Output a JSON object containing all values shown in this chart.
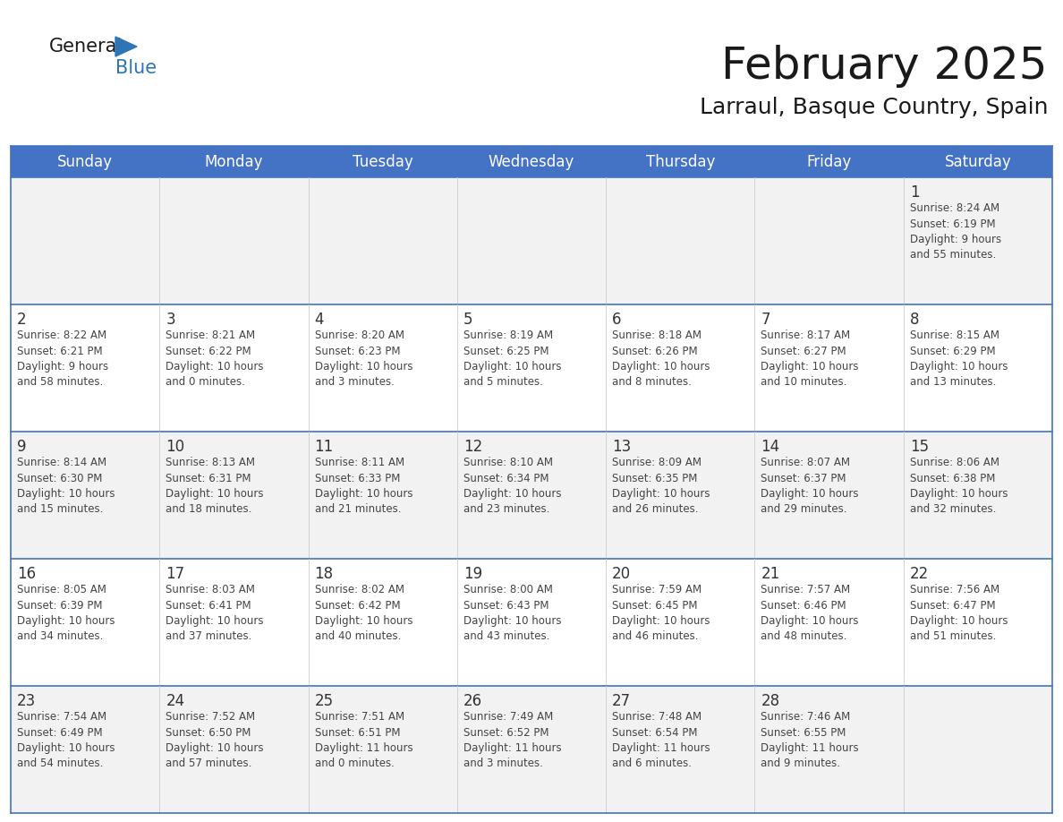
{
  "title": "February 2025",
  "subtitle": "Larraul, Basque Country, Spain",
  "days_of_week": [
    "Sunday",
    "Monday",
    "Tuesday",
    "Wednesday",
    "Thursday",
    "Friday",
    "Saturday"
  ],
  "header_bg": "#4472C4",
  "header_text": "#FFFFFF",
  "cell_bg_odd": "#F2F2F2",
  "cell_bg_even": "#FFFFFF",
  "row_border_color": "#4472C4",
  "col_border_color": "#CCCCCC",
  "title_color": "#1a1a1a",
  "subtitle_color": "#1a1a1a",
  "day_number_color": "#333333",
  "info_color": "#444444",
  "logo_general_color": "#1a1a1a",
  "logo_blue_color": "#2E75B6",
  "logo_triangle_color": "#2E75B6",
  "calendar_data": [
    [
      {
        "day": null,
        "info": ""
      },
      {
        "day": null,
        "info": ""
      },
      {
        "day": null,
        "info": ""
      },
      {
        "day": null,
        "info": ""
      },
      {
        "day": null,
        "info": ""
      },
      {
        "day": null,
        "info": ""
      },
      {
        "day": 1,
        "info": "Sunrise: 8:24 AM\nSunset: 6:19 PM\nDaylight: 9 hours\nand 55 minutes."
      }
    ],
    [
      {
        "day": 2,
        "info": "Sunrise: 8:22 AM\nSunset: 6:21 PM\nDaylight: 9 hours\nand 58 minutes."
      },
      {
        "day": 3,
        "info": "Sunrise: 8:21 AM\nSunset: 6:22 PM\nDaylight: 10 hours\nand 0 minutes."
      },
      {
        "day": 4,
        "info": "Sunrise: 8:20 AM\nSunset: 6:23 PM\nDaylight: 10 hours\nand 3 minutes."
      },
      {
        "day": 5,
        "info": "Sunrise: 8:19 AM\nSunset: 6:25 PM\nDaylight: 10 hours\nand 5 minutes."
      },
      {
        "day": 6,
        "info": "Sunrise: 8:18 AM\nSunset: 6:26 PM\nDaylight: 10 hours\nand 8 minutes."
      },
      {
        "day": 7,
        "info": "Sunrise: 8:17 AM\nSunset: 6:27 PM\nDaylight: 10 hours\nand 10 minutes."
      },
      {
        "day": 8,
        "info": "Sunrise: 8:15 AM\nSunset: 6:29 PM\nDaylight: 10 hours\nand 13 minutes."
      }
    ],
    [
      {
        "day": 9,
        "info": "Sunrise: 8:14 AM\nSunset: 6:30 PM\nDaylight: 10 hours\nand 15 minutes."
      },
      {
        "day": 10,
        "info": "Sunrise: 8:13 AM\nSunset: 6:31 PM\nDaylight: 10 hours\nand 18 minutes."
      },
      {
        "day": 11,
        "info": "Sunrise: 8:11 AM\nSunset: 6:33 PM\nDaylight: 10 hours\nand 21 minutes."
      },
      {
        "day": 12,
        "info": "Sunrise: 8:10 AM\nSunset: 6:34 PM\nDaylight: 10 hours\nand 23 minutes."
      },
      {
        "day": 13,
        "info": "Sunrise: 8:09 AM\nSunset: 6:35 PM\nDaylight: 10 hours\nand 26 minutes."
      },
      {
        "day": 14,
        "info": "Sunrise: 8:07 AM\nSunset: 6:37 PM\nDaylight: 10 hours\nand 29 minutes."
      },
      {
        "day": 15,
        "info": "Sunrise: 8:06 AM\nSunset: 6:38 PM\nDaylight: 10 hours\nand 32 minutes."
      }
    ],
    [
      {
        "day": 16,
        "info": "Sunrise: 8:05 AM\nSunset: 6:39 PM\nDaylight: 10 hours\nand 34 minutes."
      },
      {
        "day": 17,
        "info": "Sunrise: 8:03 AM\nSunset: 6:41 PM\nDaylight: 10 hours\nand 37 minutes."
      },
      {
        "day": 18,
        "info": "Sunrise: 8:02 AM\nSunset: 6:42 PM\nDaylight: 10 hours\nand 40 minutes."
      },
      {
        "day": 19,
        "info": "Sunrise: 8:00 AM\nSunset: 6:43 PM\nDaylight: 10 hours\nand 43 minutes."
      },
      {
        "day": 20,
        "info": "Sunrise: 7:59 AM\nSunset: 6:45 PM\nDaylight: 10 hours\nand 46 minutes."
      },
      {
        "day": 21,
        "info": "Sunrise: 7:57 AM\nSunset: 6:46 PM\nDaylight: 10 hours\nand 48 minutes."
      },
      {
        "day": 22,
        "info": "Sunrise: 7:56 AM\nSunset: 6:47 PM\nDaylight: 10 hours\nand 51 minutes."
      }
    ],
    [
      {
        "day": 23,
        "info": "Sunrise: 7:54 AM\nSunset: 6:49 PM\nDaylight: 10 hours\nand 54 minutes."
      },
      {
        "day": 24,
        "info": "Sunrise: 7:52 AM\nSunset: 6:50 PM\nDaylight: 10 hours\nand 57 minutes."
      },
      {
        "day": 25,
        "info": "Sunrise: 7:51 AM\nSunset: 6:51 PM\nDaylight: 11 hours\nand 0 minutes."
      },
      {
        "day": 26,
        "info": "Sunrise: 7:49 AM\nSunset: 6:52 PM\nDaylight: 11 hours\nand 3 minutes."
      },
      {
        "day": 27,
        "info": "Sunrise: 7:48 AM\nSunset: 6:54 PM\nDaylight: 11 hours\nand 6 minutes."
      },
      {
        "day": 28,
        "info": "Sunrise: 7:46 AM\nSunset: 6:55 PM\nDaylight: 11 hours\nand 9 minutes."
      },
      {
        "day": null,
        "info": ""
      }
    ]
  ]
}
